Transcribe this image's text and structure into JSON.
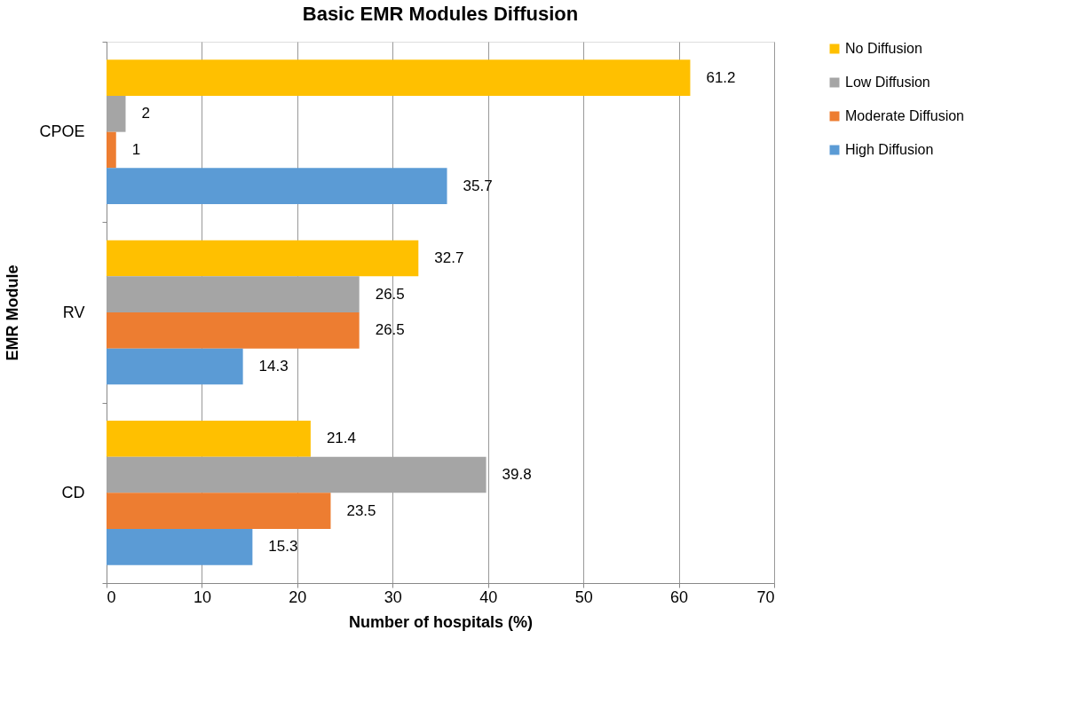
{
  "chart_data": {
    "type": "bar",
    "orientation": "horizontal",
    "title": "Basic EMR Modules Diffusion",
    "xlabel": "Number of hospitals (%)",
    "ylabel": "EMR Module",
    "categories": [
      "CPOE",
      "RV",
      "CD"
    ],
    "series": [
      {
        "name": "No Diffusion",
        "color": "#ffc000",
        "values": [
          61.2,
          32.7,
          21.4
        ]
      },
      {
        "name": "Low Diffusion",
        "color": "#a5a5a5",
        "values": [
          2,
          26.5,
          39.8
        ]
      },
      {
        "name": "Moderate Diffusion",
        "color": "#ed7d31",
        "values": [
          1,
          26.5,
          23.5
        ]
      },
      {
        "name": "High Diffusion",
        "color": "#5b9bd5",
        "values": [
          35.7,
          14.3,
          15.3
        ]
      }
    ],
    "xlim": [
      0,
      70
    ],
    "xticks": [
      0,
      10,
      20,
      30,
      40,
      50,
      60,
      70
    ],
    "grid": "x",
    "legend": "right",
    "data_labels": true
  }
}
